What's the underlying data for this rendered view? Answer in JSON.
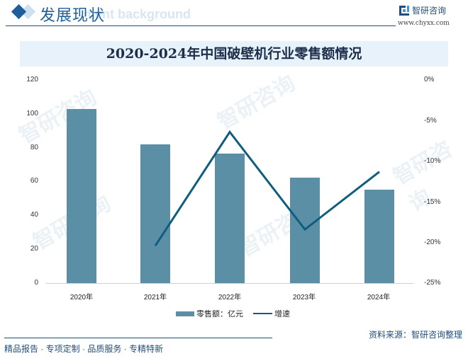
{
  "header": {
    "section_title": "发展现状",
    "section_bg_text": "ment background",
    "brand_name": "智研咨询",
    "brand_url": "www.chyxx.com"
  },
  "chart_title": "2020-2024年中国破壁机行业零售额情况",
  "chart_data": {
    "type": "bar",
    "title": "2020-2024年中国破壁机行业零售额情况",
    "categories": [
      "2020年",
      "2021年",
      "2022年",
      "2023年",
      "2024年"
    ],
    "series": [
      {
        "name": "零售额：亿元",
        "type": "bar",
        "axis": "left",
        "color": "#5b8fa6",
        "values": [
          103.0,
          82.0,
          76.6,
          62.3,
          55.2
        ]
      },
      {
        "name": "增速",
        "type": "line",
        "axis": "right",
        "color": "#0f5e7e",
        "values": [
          null,
          -20.4,
          -6.4,
          -18.4,
          -11.3
        ]
      }
    ],
    "left_axis": {
      "ylim": [
        0,
        120
      ],
      "ticks": [
        "0",
        "20",
        "40",
        "60",
        "80",
        "100",
        "120"
      ]
    },
    "right_axis": {
      "ylim": [
        -25,
        0
      ],
      "ticks": [
        "-25%",
        "-20%",
        "-15%",
        "-10%",
        "-5%",
        "0%"
      ]
    },
    "xlabel": "",
    "ylabel": "",
    "grid": false,
    "legend_position": "bottom"
  },
  "legend": {
    "bar_label": "零售额：亿元",
    "line_label": "增速"
  },
  "footer": {
    "source": "资料来源：智研咨询整理",
    "tagline": "精品报告 · 专项定制 · 品质服务 · 专精特新"
  },
  "watermark_text": "智研咨询"
}
